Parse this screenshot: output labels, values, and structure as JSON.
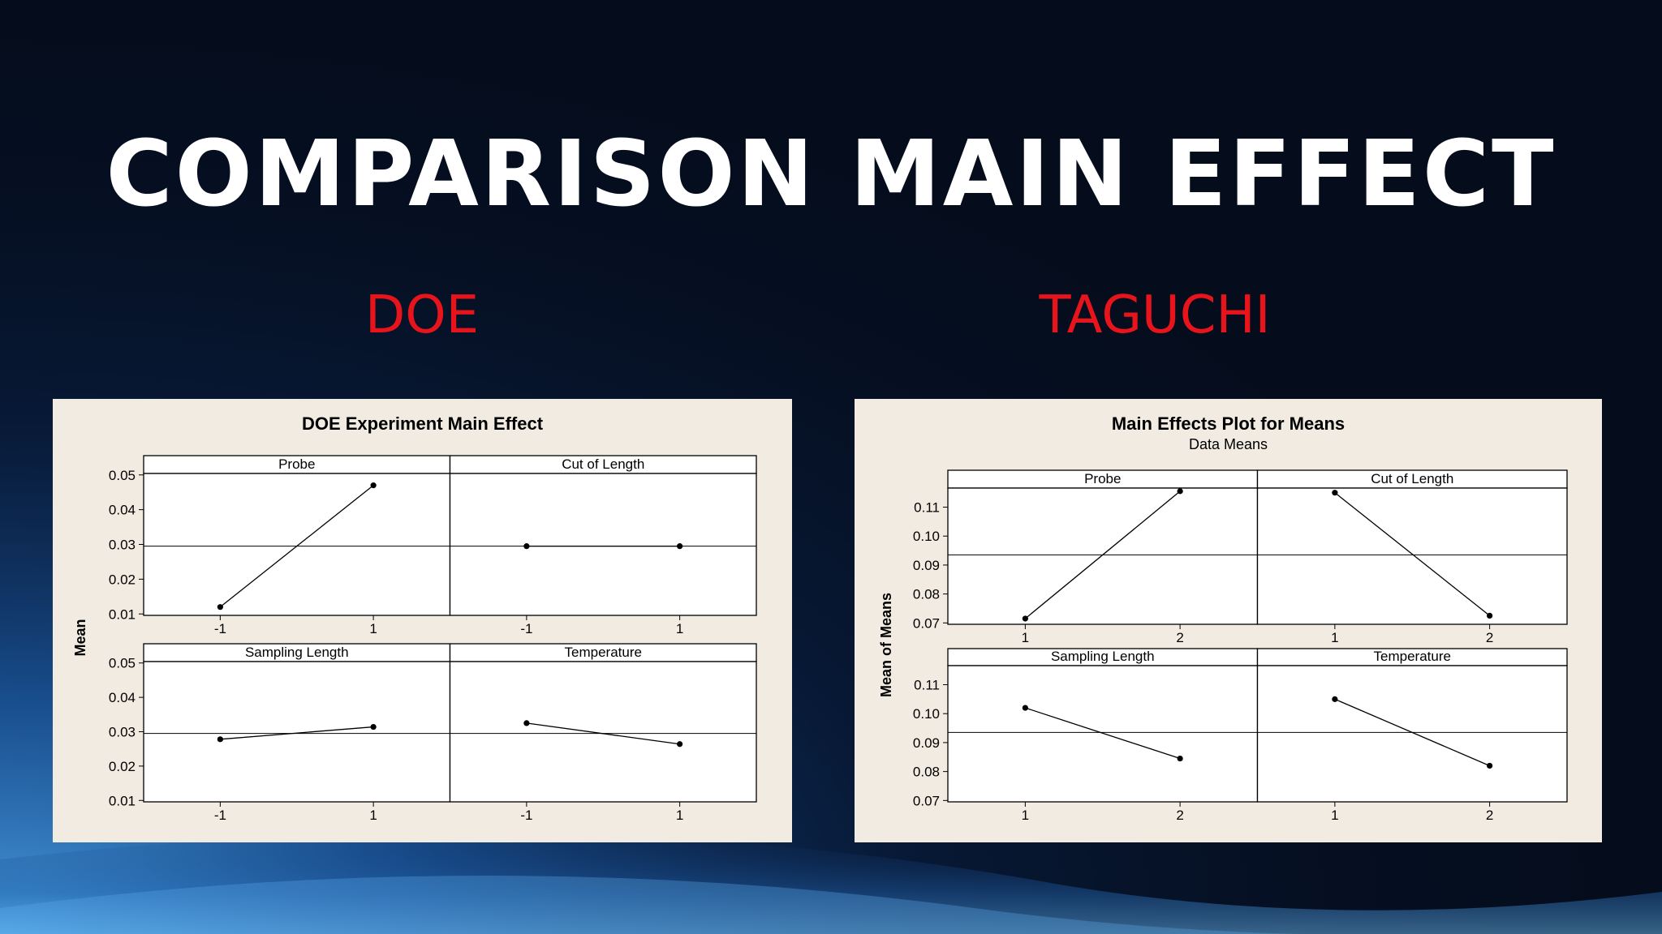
{
  "slide": {
    "title": "COMPARISON MAIN EFFECT",
    "left_heading": "DOE",
    "right_heading": "TAGUCHI"
  },
  "colors": {
    "background": "#050d1d",
    "heading_red": "#e8141b",
    "panel_bg": "#f1ebe2",
    "title_white": "#ffffff"
  },
  "chart_data": [
    {
      "type": "line",
      "title": "DOE Experiment Main Effect",
      "subtitle": "",
      "ylabel": "Mean",
      "ylim": [
        0.01,
        0.05
      ],
      "yticks": [
        "0.01",
        "0.02",
        "0.03",
        "0.04",
        "0.05"
      ],
      "reference_line": 0.0295,
      "layout": "2x2",
      "panels": [
        {
          "name": "Probe",
          "x": [
            "-1",
            "1"
          ],
          "values": [
            0.012,
            0.047
          ]
        },
        {
          "name": "Cut of Length",
          "x": [
            "-1",
            "1"
          ],
          "values": [
            0.0295,
            0.0295
          ]
        },
        {
          "name": "Sampling Length",
          "x": [
            "-1",
            "1"
          ],
          "values": [
            0.0278,
            0.0314
          ]
        },
        {
          "name": "Temperature",
          "x": [
            "-1",
            "1"
          ],
          "values": [
            0.0325,
            0.0264
          ]
        }
      ]
    },
    {
      "type": "line",
      "title": "Main Effects Plot for Means",
      "subtitle": "Data Means",
      "ylabel": "Mean of Means",
      "ylim": [
        0.07,
        0.12
      ],
      "yticks": [
        "0.07",
        "0.08",
        "0.09",
        "0.10",
        "0.11"
      ],
      "reference_line": 0.0935,
      "layout": "2x2",
      "panels": [
        {
          "name": "Probe",
          "x": [
            "1",
            "2"
          ],
          "values": [
            0.0715,
            0.1155
          ]
        },
        {
          "name": "Cut of Length",
          "x": [
            "1",
            "2"
          ],
          "values": [
            0.115,
            0.0725
          ]
        },
        {
          "name": "Sampling Length",
          "x": [
            "1",
            "2"
          ],
          "values": [
            0.102,
            0.0845
          ]
        },
        {
          "name": "Temperature",
          "x": [
            "1",
            "2"
          ],
          "values": [
            0.105,
            0.082
          ]
        }
      ]
    }
  ]
}
